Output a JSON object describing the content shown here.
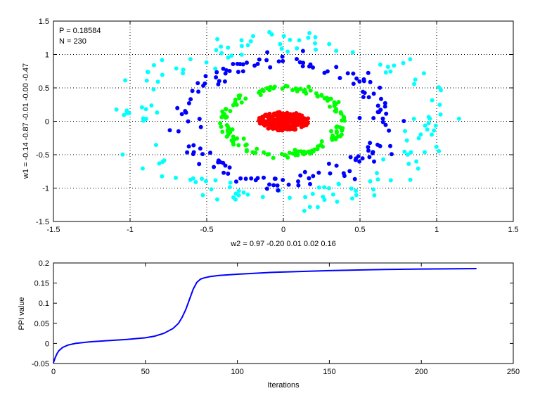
{
  "chart_data": [
    {
      "type": "scatter",
      "xlabel": "w2 = 0.97  -0.20  0.01  0.02  0.16",
      "ylabel": "w1 = -0.14  -0.87  -0.01  -0.00  -0.47",
      "xlim": [
        -1.5,
        1.5
      ],
      "ylim": [
        -1.5,
        1.5
      ],
      "xticks": [
        "-1.5",
        "-1",
        "-0.5",
        "0",
        "0.5",
        "1",
        "1.5"
      ],
      "yticks": [
        "-1.5",
        "-1",
        "-0.5",
        "0",
        "0.5",
        "1",
        "1.5"
      ],
      "grid": true,
      "annotations": [
        "P = 0.18584",
        "N = 230"
      ],
      "series": [
        {
          "color": "#00ffff",
          "shape": "ring",
          "rx": 0.98,
          "ry": 1.18,
          "count": 150,
          "spread": 0.08
        },
        {
          "color": "#0000ff",
          "shape": "ring",
          "rx": 0.66,
          "ry": 0.9,
          "count": 150,
          "spread": 0.07
        },
        {
          "color": "#00ff00",
          "shape": "ring",
          "rx": 0.38,
          "ry": 0.5,
          "count": 150,
          "spread": 0.05
        },
        {
          "color": "#ff0000",
          "shape": "disk",
          "rx": 0.17,
          "ry": 0.14,
          "count": 230
        }
      ]
    },
    {
      "type": "line",
      "xlabel": "Iterations",
      "ylabel": "PPI value",
      "xlim": [
        0,
        250
      ],
      "ylim": [
        -0.05,
        0.2
      ],
      "xticks": [
        "0",
        "50",
        "100",
        "150",
        "200",
        "250"
      ],
      "yticks": [
        "-0.05",
        "0",
        "0.05",
        "0.1",
        "0.15",
        "0.2"
      ],
      "grid": false,
      "series": [
        {
          "color": "#0000ff",
          "x": [
            0,
            1,
            2,
            3,
            5,
            8,
            12,
            20,
            30,
            40,
            50,
            55,
            60,
            65,
            68,
            70,
            72,
            74,
            76,
            78,
            80,
            82,
            85,
            90,
            100,
            120,
            150,
            180,
            200,
            230
          ],
          "y": [
            -0.048,
            -0.035,
            -0.025,
            -0.018,
            -0.01,
            -0.004,
            0.0,
            0.004,
            0.007,
            0.01,
            0.014,
            0.018,
            0.025,
            0.037,
            0.05,
            0.065,
            0.085,
            0.11,
            0.135,
            0.152,
            0.16,
            0.163,
            0.166,
            0.169,
            0.172,
            0.177,
            0.181,
            0.184,
            0.185,
            0.186
          ]
        }
      ]
    }
  ]
}
